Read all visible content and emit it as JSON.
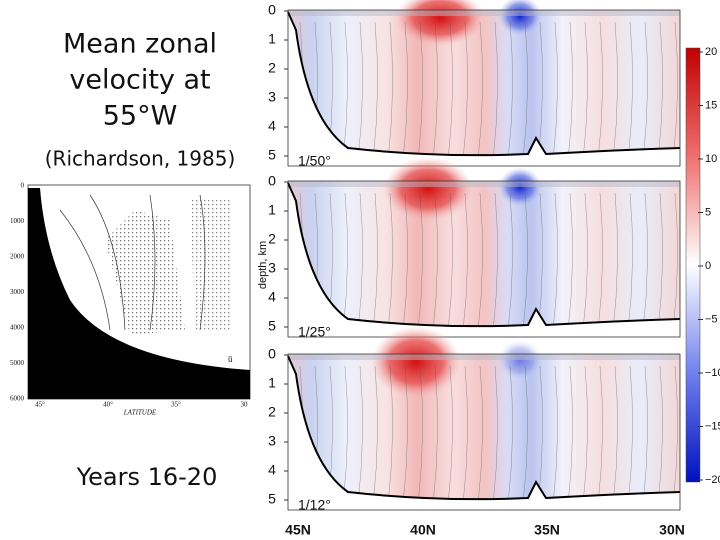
{
  "title_lines": [
    "Mean zonal",
    "velocity at",
    "55°W"
  ],
  "citation": "(Richardson, 1985)",
  "period": "Years 16-20",
  "y_axis_label": "depth, km",
  "depth_ticks": [
    "0",
    "1",
    "2",
    "3",
    "4",
    "5"
  ],
  "panels": [
    {
      "label": "1/50°"
    },
    {
      "label": "1/25°"
    },
    {
      "label": "1/12°"
    }
  ],
  "latitudes": [
    "45N",
    "40N",
    "35N",
    "30N"
  ],
  "colorbar_ticks": [
    "20",
    "15",
    "10",
    "5",
    "0",
    "−5",
    "−10",
    "−15",
    "−20"
  ],
  "inset": {
    "depth_ticks": [
      "0",
      "1000",
      "2000",
      "3000",
      "4000",
      "5000",
      "6000"
    ],
    "lat_ticks": [
      "45°",
      "40°",
      "35°",
      "30"
    ],
    "x_label": "LATITUDE",
    "legend": "ū"
  }
}
